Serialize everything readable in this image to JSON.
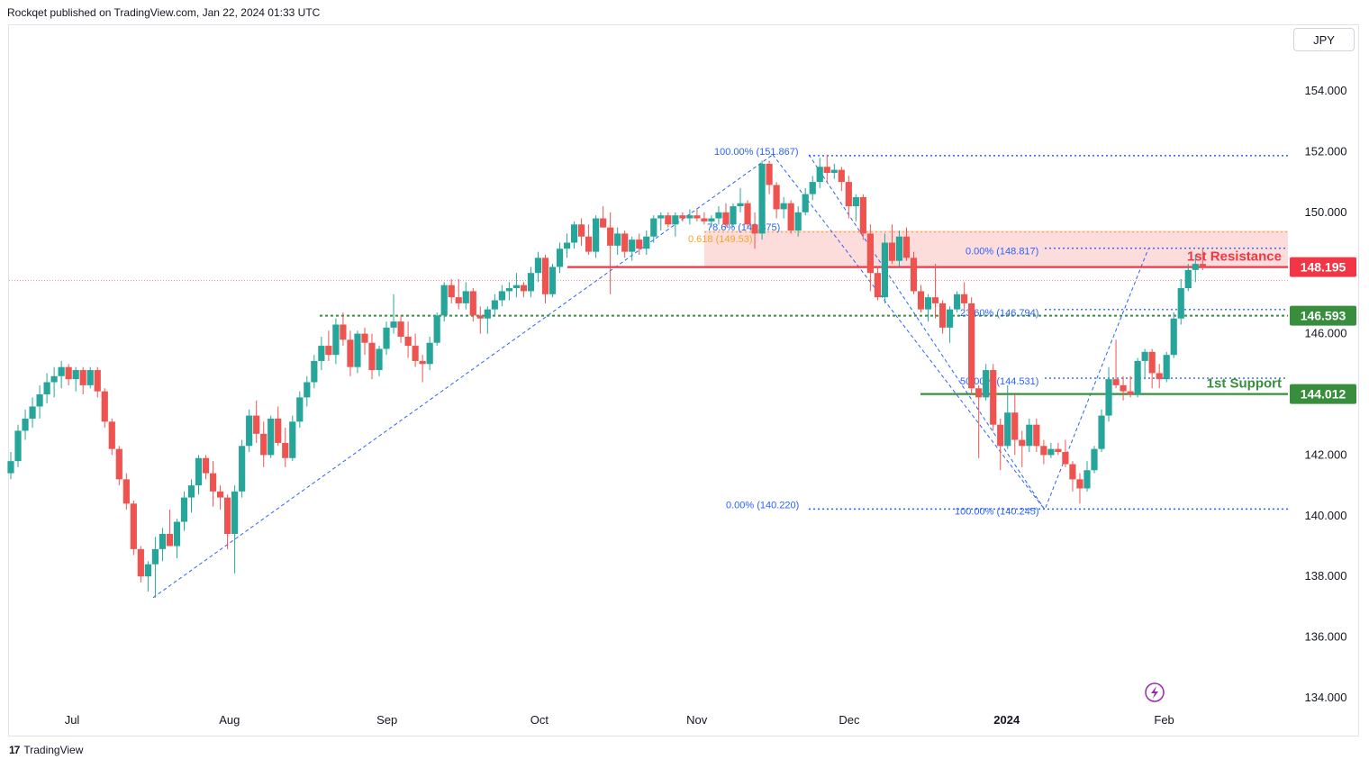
{
  "header": {
    "published": "Rockqet published on TradingView.com, Jan 22, 2024 01:33 UTC"
  },
  "footer": {
    "brand": "TradingView",
    "logo_icon": "tradingview-logo-icon"
  },
  "colors": {
    "up": "#26a69a",
    "down": "#ef5350",
    "resistance": "#f23645",
    "support": "#388e3c",
    "zone": "#fdd8d8",
    "fib": "#2962ff",
    "fib_label": "#2962ff",
    "fib_gold": "#f5a623"
  },
  "chart_data": {
    "type": "candlestick",
    "currency": "JPY",
    "ylim": [
      133.0,
      157.0
    ],
    "y_ticks": [
      "154.000",
      "152.000",
      "150.000",
      "146.000",
      "142.000",
      "140.000",
      "138.000",
      "136.000",
      "134.000"
    ],
    "y_tick_values": [
      154,
      152,
      150,
      146,
      142,
      140,
      138,
      136,
      134
    ],
    "x_ticks": [
      {
        "label": "Jul",
        "day": 0
      },
      {
        "label": "Aug",
        "day": 31
      },
      {
        "label": "Sep",
        "day": 62
      },
      {
        "label": "Oct",
        "day": 92
      },
      {
        "label": "Nov",
        "day": 123
      },
      {
        "label": "Dec",
        "day": 153
      },
      {
        "label": "2024",
        "day": 184,
        "bold": true
      },
      {
        "label": "Feb",
        "day": 215
      }
    ],
    "candles": [
      [
        141.4,
        142.1,
        141.2,
        141.8
      ],
      [
        141.8,
        143.0,
        141.6,
        142.8
      ],
      [
        142.8,
        143.5,
        142.5,
        143.2
      ],
      [
        143.2,
        143.9,
        142.9,
        143.6
      ],
      [
        143.6,
        144.3,
        143.2,
        144.0
      ],
      [
        144.0,
        144.7,
        143.7,
        144.4
      ],
      [
        144.4,
        144.9,
        143.9,
        144.6
      ],
      [
        144.6,
        145.1,
        144.2,
        144.9
      ],
      [
        144.9,
        145.0,
        144.3,
        144.5
      ],
      [
        144.5,
        144.9,
        144.1,
        144.8
      ],
      [
        144.8,
        144.9,
        144.0,
        144.3
      ],
      [
        144.3,
        144.9,
        144.2,
        144.8
      ],
      [
        144.8,
        144.9,
        143.9,
        144.1
      ],
      [
        144.1,
        144.2,
        142.9,
        143.1
      ],
      [
        143.1,
        143.2,
        142.0,
        142.2
      ],
      [
        142.2,
        142.3,
        141.0,
        141.2
      ],
      [
        141.2,
        141.4,
        140.2,
        140.4
      ],
      [
        140.4,
        140.5,
        138.7,
        138.9
      ],
      [
        138.9,
        139.0,
        137.8,
        138.0
      ],
      [
        138.0,
        138.5,
        137.5,
        138.4
      ],
      [
        138.4,
        139.3,
        137.3,
        138.9
      ],
      [
        138.9,
        139.6,
        138.5,
        139.4
      ],
      [
        139.4,
        140.2,
        139.1,
        139.0
      ],
      [
        139.0,
        139.9,
        138.6,
        139.8
      ],
      [
        139.8,
        140.8,
        139.5,
        140.6
      ],
      [
        140.6,
        141.2,
        140.1,
        141.0
      ],
      [
        141.0,
        142.0,
        140.7,
        141.9
      ],
      [
        141.9,
        142.0,
        141.2,
        141.4
      ],
      [
        141.4,
        141.8,
        140.3,
        140.8
      ],
      [
        140.8,
        141.0,
        140.2,
        140.6
      ],
      [
        140.6,
        140.7,
        138.9,
        139.4
      ],
      [
        139.4,
        141.0,
        138.1,
        140.8
      ],
      [
        140.8,
        142.5,
        140.6,
        142.3
      ],
      [
        142.3,
        143.5,
        142.1,
        143.3
      ],
      [
        143.3,
        143.8,
        142.4,
        142.7
      ],
      [
        142.7,
        143.1,
        141.6,
        142.0
      ],
      [
        142.0,
        143.3,
        141.9,
        143.2
      ],
      [
        143.2,
        143.6,
        142.3,
        142.4
      ],
      [
        142.4,
        142.9,
        141.6,
        141.9
      ],
      [
        141.9,
        143.3,
        141.8,
        143.1
      ],
      [
        143.1,
        144.1,
        142.9,
        143.9
      ],
      [
        143.9,
        144.6,
        143.6,
        144.4
      ],
      [
        144.4,
        145.3,
        144.2,
        145.1
      ],
      [
        145.1,
        145.9,
        144.8,
        145.6
      ],
      [
        145.6,
        146.1,
        145.1,
        145.3
      ],
      [
        145.3,
        146.5,
        145.0,
        146.3
      ],
      [
        146.3,
        146.7,
        145.6,
        145.8
      ],
      [
        145.8,
        146.1,
        144.6,
        144.9
      ],
      [
        144.9,
        146.1,
        144.7,
        146.0
      ],
      [
        146.0,
        146.2,
        145.3,
        145.7
      ],
      [
        145.7,
        146.0,
        144.5,
        144.8
      ],
      [
        144.8,
        145.6,
        144.6,
        145.5
      ],
      [
        145.5,
        146.4,
        145.3,
        146.2
      ],
      [
        146.2,
        147.3,
        146.0,
        146.4
      ],
      [
        146.4,
        146.6,
        145.7,
        145.9
      ],
      [
        145.9,
        146.4,
        145.2,
        145.6
      ],
      [
        145.6,
        146.0,
        144.9,
        145.1
      ],
      [
        145.1,
        145.3,
        144.4,
        145.0
      ],
      [
        145.0,
        145.9,
        144.8,
        145.7
      ],
      [
        145.7,
        146.7,
        145.6,
        146.6
      ],
      [
        146.6,
        147.7,
        146.4,
        147.6
      ],
      [
        147.6,
        147.8,
        147.0,
        147.2
      ],
      [
        147.2,
        147.8,
        146.8,
        147.0
      ],
      [
        147.0,
        147.7,
        146.8,
        147.4
      ],
      [
        147.4,
        147.5,
        146.4,
        146.6
      ],
      [
        146.6,
        146.9,
        146.0,
        146.5
      ],
      [
        146.5,
        146.9,
        146.0,
        146.8
      ],
      [
        146.8,
        147.3,
        146.6,
        147.1
      ],
      [
        147.1,
        147.6,
        146.9,
        147.4
      ],
      [
        147.4,
        147.7,
        147.1,
        147.5
      ],
      [
        147.5,
        148.0,
        147.2,
        147.6
      ],
      [
        147.6,
        147.7,
        147.2,
        147.4
      ],
      [
        147.4,
        148.2,
        147.2,
        148.0
      ],
      [
        148.0,
        148.7,
        147.7,
        148.5
      ],
      [
        148.5,
        148.6,
        147.0,
        147.3
      ],
      [
        147.3,
        148.3,
        147.2,
        148.2
      ],
      [
        148.2,
        149.0,
        148.0,
        148.8
      ],
      [
        148.8,
        149.3,
        148.5,
        149.0
      ],
      [
        149.0,
        149.7,
        148.8,
        149.6
      ],
      [
        149.6,
        149.8,
        148.9,
        149.2
      ],
      [
        149.2,
        149.6,
        148.6,
        148.7
      ],
      [
        148.7,
        149.9,
        148.5,
        149.8
      ],
      [
        149.8,
        150.2,
        149.5,
        149.5
      ],
      [
        149.5,
        150.0,
        147.3,
        148.9
      ],
      [
        148.9,
        149.5,
        148.6,
        149.3
      ],
      [
        149.3,
        149.4,
        148.5,
        148.7
      ],
      [
        148.7,
        149.2,
        148.4,
        149.1
      ],
      [
        149.1,
        149.3,
        148.6,
        148.8
      ],
      [
        148.8,
        149.4,
        148.6,
        149.2
      ],
      [
        149.2,
        149.9,
        149.0,
        149.8
      ],
      [
        149.8,
        150.0,
        149.4,
        149.9
      ],
      [
        149.9,
        150.0,
        149.5,
        149.6
      ],
      [
        149.6,
        150.0,
        149.2,
        149.9
      ],
      [
        149.9,
        150.0,
        149.7,
        149.8
      ],
      [
        149.8,
        150.1,
        149.6,
        149.9
      ],
      [
        149.9,
        150.1,
        149.7,
        149.8
      ],
      [
        149.8,
        150.0,
        149.6,
        149.7
      ],
      [
        149.7,
        149.9,
        149.5,
        149.8
      ],
      [
        149.8,
        150.2,
        149.6,
        150.0
      ],
      [
        150.0,
        150.3,
        149.5,
        149.6
      ],
      [
        149.6,
        150.3,
        149.5,
        150.2
      ],
      [
        150.2,
        150.8,
        150.0,
        150.3
      ],
      [
        150.3,
        150.4,
        149.5,
        149.6
      ],
      [
        149.6,
        150.0,
        148.8,
        149.3
      ],
      [
        149.3,
        151.7,
        149.1,
        151.6
      ],
      [
        151.6,
        151.7,
        150.6,
        150.9
      ],
      [
        150.9,
        151.0,
        149.8,
        150.1
      ],
      [
        150.1,
        150.5,
        149.8,
        150.3
      ],
      [
        150.3,
        150.4,
        149.3,
        149.4
      ],
      [
        149.4,
        150.2,
        149.2,
        150.0
      ],
      [
        150.0,
        150.8,
        149.9,
        150.6
      ],
      [
        150.6,
        151.2,
        150.4,
        151.0
      ],
      [
        151.0,
        151.8,
        150.8,
        151.5
      ],
      [
        151.5,
        151.9,
        151.0,
        151.3
      ],
      [
        151.3,
        151.6,
        151.1,
        151.4
      ],
      [
        151.4,
        151.5,
        150.7,
        151.0
      ],
      [
        151.0,
        151.2,
        149.8,
        150.2
      ],
      [
        150.2,
        150.6,
        149.7,
        150.5
      ],
      [
        150.5,
        150.6,
        149.1,
        149.3
      ],
      [
        149.3,
        149.6,
        147.4,
        148.0
      ],
      [
        148.0,
        148.2,
        147.1,
        147.2
      ],
      [
        147.2,
        149.3,
        147.0,
        149.0
      ],
      [
        149.0,
        149.6,
        148.3,
        148.4
      ],
      [
        148.4,
        149.4,
        148.2,
        149.2
      ],
      [
        149.2,
        149.5,
        148.4,
        148.5
      ],
      [
        148.5,
        148.7,
        147.3,
        147.4
      ],
      [
        147.4,
        147.6,
        146.7,
        146.8
      ],
      [
        146.8,
        147.3,
        146.4,
        147.2
      ],
      [
        147.2,
        148.3,
        146.5,
        147.0
      ],
      [
        147.0,
        147.1,
        146.0,
        146.2
      ],
      [
        146.2,
        146.9,
        145.7,
        146.8
      ],
      [
        146.8,
        147.4,
        146.7,
        147.3
      ],
      [
        147.3,
        147.7,
        146.8,
        147.0
      ],
      [
        147.0,
        147.2,
        144.0,
        144.2
      ],
      [
        144.2,
        144.3,
        141.9,
        143.9
      ],
      [
        143.9,
        145.0,
        143.8,
        144.8
      ],
      [
        144.8,
        145.0,
        142.8,
        143.0
      ],
      [
        143.0,
        143.2,
        141.5,
        142.3
      ],
      [
        142.3,
        144.3,
        142.2,
        143.4
      ],
      [
        143.4,
        144.0,
        142.0,
        142.5
      ],
      [
        142.5,
        142.8,
        141.6,
        142.3
      ],
      [
        142.3,
        143.2,
        142.1,
        143.0
      ],
      [
        143.0,
        143.2,
        142.1,
        142.3
      ],
      [
        142.3,
        142.5,
        141.7,
        142.0
      ],
      [
        142.0,
        142.4,
        141.9,
        142.2
      ],
      [
        142.2,
        142.4,
        142.0,
        142.1
      ],
      [
        142.1,
        142.5,
        141.6,
        141.7
      ],
      [
        141.7,
        141.8,
        140.8,
        141.2
      ],
      [
        141.2,
        141.4,
        140.4,
        140.9
      ],
      [
        140.9,
        141.8,
        140.8,
        141.5
      ],
      [
        141.5,
        142.3,
        141.4,
        142.2
      ],
      [
        142.2,
        143.5,
        142.1,
        143.3
      ],
      [
        143.3,
        144.9,
        143.1,
        144.5
      ],
      [
        144.5,
        145.8,
        144.2,
        144.3
      ],
      [
        144.3,
        144.6,
        143.8,
        144.1
      ],
      [
        144.1,
        144.6,
        143.9,
        144.0
      ],
      [
        144.0,
        145.2,
        143.9,
        145.1
      ],
      [
        145.1,
        145.5,
        144.5,
        145.4
      ],
      [
        145.4,
        145.5,
        144.2,
        144.7
      ],
      [
        144.7,
        145.0,
        144.2,
        144.5
      ],
      [
        144.5,
        145.4,
        144.4,
        145.3
      ],
      [
        145.3,
        146.7,
        145.2,
        146.5
      ],
      [
        146.5,
        147.8,
        146.3,
        147.5
      ],
      [
        147.5,
        148.3,
        147.4,
        148.1
      ],
      [
        148.1,
        148.6,
        147.7,
        148.3
      ],
      [
        148.3,
        148.8,
        148.1,
        148.2
      ]
    ],
    "levels": [
      {
        "name": "1st Resistance",
        "value": 148.195,
        "price_label": "148.195",
        "color": "#f23645",
        "style": "solid"
      },
      {
        "name": "1st Support",
        "value": 144.012,
        "price_label": "144.012",
        "color": "#388e3c",
        "style": "solid"
      },
      {
        "name": "",
        "value": 146.593,
        "price_label": "146.593",
        "color": "#388e3c",
        "style": "dotted"
      }
    ],
    "level_text": {
      "resistance": "1st Resistance",
      "support": "1st Support"
    },
    "resistance_zone": [
      148.2,
      149.4
    ],
    "fib_labels": [
      {
        "text": "100.00% (151.867)"
      },
      {
        "text": "78.6% (149.375)"
      },
      {
        "text": "0.618 (149.53)"
      },
      {
        "text": "0.00% (148.817)"
      },
      {
        "text": "23.60% (146.794)"
      },
      {
        "text": "50.00% (144.531)"
      },
      {
        "text": "0.00% (140.220)"
      },
      {
        "text": "100.00% (140.245)"
      }
    ]
  }
}
